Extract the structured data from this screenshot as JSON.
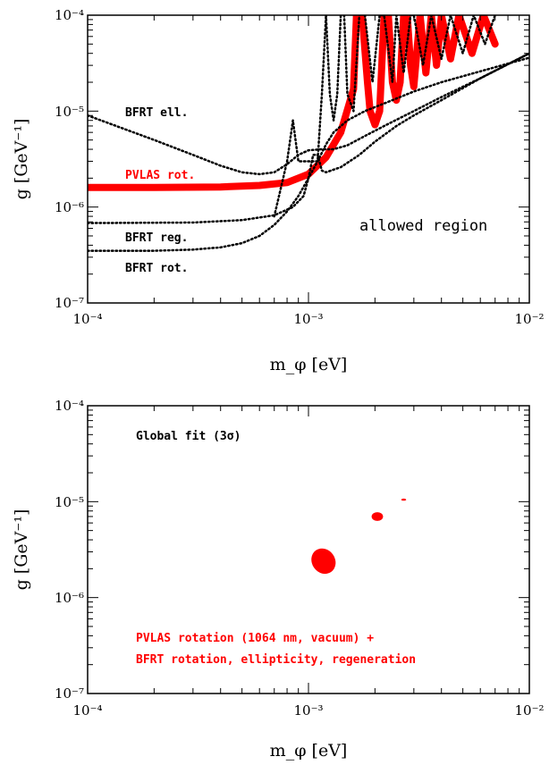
{
  "chart_data": [
    {
      "type": "line",
      "xscale": "log",
      "yscale": "log",
      "xlim": [
        0.0001,
        0.01
      ],
      "ylim": [
        1e-07,
        0.0001
      ],
      "xlabel": "m_φ [eV]",
      "ylabel": "g [GeV⁻¹]",
      "x_ticks": [
        "10⁻⁴",
        "10⁻³",
        "10⁻²"
      ],
      "y_ticks": [
        "10⁻⁷",
        "10⁻⁶",
        "10⁻⁵",
        "10⁻⁴"
      ],
      "grid": false,
      "annotations": [
        {
          "text": "BFRT ell.",
          "color": "#000000"
        },
        {
          "text": "PVLAS rot.",
          "color": "#ff0000"
        },
        {
          "text": "BFRT reg.",
          "color": "#000000"
        },
        {
          "text": "BFRT rot.",
          "color": "#000000"
        },
        {
          "text": "allowed region",
          "color": "#000000"
        }
      ],
      "curves": [
        {
          "label": "PVLAS rot.",
          "style": "solid-thick",
          "color": "#ff0000",
          "x": [
            0.0001,
            0.0002,
            0.0004,
            0.0006,
            0.0008,
            0.001,
            0.0012,
            0.0014,
            0.0016,
            0.00165
          ],
          "y": [
            1.6e-06,
            1.6e-06,
            1.62e-06,
            1.68e-06,
            1.8e-06,
            2.2e-06,
            3.3e-06,
            6e-06,
            1.7e-05,
            0.0001
          ]
        },
        {
          "label": "PVLAS rot. (resonances)",
          "style": "solid-thick",
          "color": "#ff0000",
          "x": [
            0.00175,
            0.00185,
            0.0019,
            0.002,
            0.0021,
            0.0022,
            0.0023,
            0.0024,
            0.0025,
            0.0026,
            0.0027,
            0.0028,
            0.0029,
            0.003,
            0.0032,
            0.0034,
            0.0036,
            0.0038,
            0.004,
            0.0044,
            0.0048,
            0.0055,
            0.0062,
            0.007
          ],
          "y": [
            0.0001,
            2e-05,
            1e-05,
            7.2e-06,
            1e-05,
            0.0001,
            0.0001,
            2e-05,
            1.3e-05,
            2e-05,
            0.0001,
            0.0001,
            3e-05,
            1.8e-05,
            0.0001,
            2.5e-05,
            0.0001,
            3e-05,
            0.0001,
            3.5e-05,
            0.0001,
            4e-05,
            0.0001,
            5e-05
          ]
        },
        {
          "label": "BFRT ell.",
          "style": "dotted",
          "color": "#000000",
          "x": [
            0.0001,
            0.0002,
            0.0003,
            0.0004,
            0.0005,
            0.0006,
            0.0007,
            0.0008,
            0.0009,
            0.001,
            0.00115,
            0.0013,
            0.0015,
            0.0018,
            0.0022,
            0.003,
            0.004,
            0.006,
            0.01
          ],
          "y": [
            9e-06,
            5e-06,
            3.5e-06,
            2.7e-06,
            2.3e-06,
            2.2e-06,
            2.3e-06,
            2.8e-06,
            3.5e-06,
            3.9e-06,
            4e-06,
            4e-06,
            4.4e-06,
            5.5e-06,
            7e-06,
            1e-05,
            1.4e-05,
            2.2e-05,
            4e-05
          ]
        },
        {
          "label": "BFRT reg.",
          "style": "dotted",
          "color": "#000000",
          "x": [
            0.0001,
            0.0003,
            0.0005,
            0.0007,
            0.00085,
            0.00095,
            0.001,
            0.00105,
            0.0011,
            0.00115,
            0.0012,
            0.0014,
            0.0017,
            0.002,
            0.0025,
            0.003,
            0.004,
            0.006,
            0.01
          ],
          "y": [
            6.8e-07,
            6.9e-07,
            7.3e-07,
            8.2e-07,
            1e-06,
            1.3e-06,
            2e-06,
            3.5e-06,
            3.5e-06,
            2.4e-06,
            2.3e-06,
            2.6e-06,
            3.5e-06,
            4.8e-06,
            7e-06,
            9e-06,
            1.3e-05,
            2.2e-05,
            4e-05
          ]
        },
        {
          "label": "BFRT rot.",
          "style": "dotted",
          "color": "#000000",
          "x": [
            0.0001,
            0.0002,
            0.0003,
            0.0004,
            0.0005,
            0.0006,
            0.0007,
            0.0008,
            0.0009,
            0.001,
            0.0011,
            0.0012,
            0.0013,
            0.0015,
            0.0018,
            0.0022,
            0.003,
            0.004,
            0.006,
            0.01
          ],
          "y": [
            3.5e-07,
            3.5e-07,
            3.6e-07,
            3.8e-07,
            4.2e-07,
            5e-07,
            6.5e-07,
            9e-07,
            1.3e-06,
            2e-06,
            3e-06,
            4.5e-06,
            6e-06,
            8e-06,
            1e-05,
            1.2e-05,
            1.6e-05,
            2e-05,
            2.6e-05,
            3.6e-05
          ]
        },
        {
          "label": "BFRT ell. resonance",
          "style": "dotted",
          "color": "#000000",
          "x": [
            0.0007,
            0.0008,
            0.00085,
            0.0009,
            0.0011,
            0.00115,
            0.0012
          ],
          "y": [
            8e-07,
            3e-06,
            8e-06,
            3e-06,
            3e-06,
            1.5e-05,
            0.0001
          ]
        },
        {
          "label": "BFRT ell. resonance 2",
          "style": "dotted",
          "color": "#000000",
          "x": [
            0.00145,
            0.0015,
            0.0016,
            0.0017
          ],
          "y": [
            0.0001,
            1.5e-05,
            1e-05,
            0.0001
          ]
        },
        {
          "label": "BFRT reg. resonance",
          "style": "dotted",
          "color": "#000000",
          "x": [
            0.0012,
            0.00125,
            0.0013,
            0.00135,
            0.0014
          ],
          "y": [
            0.0001,
            1.5e-05,
            8e-06,
            1.5e-05,
            0.0001
          ]
        },
        {
          "label": "BFRT resonances 3",
          "style": "dotted",
          "color": "#000000",
          "x": [
            0.0018,
            0.00195,
            0.0021,
            0.0022,
            0.0024,
            0.0025,
            0.0027,
            0.0029,
            0.003,
            0.0033,
            0.0036,
            0.004,
            0.0044,
            0.005,
            0.0056,
            0.0063,
            0.007
          ],
          "y": [
            0.0001,
            2e-05,
            0.0001,
            0.0001,
            2e-05,
            0.0001,
            2.5e-05,
            0.0001,
            0.0001,
            3e-05,
            0.0001,
            3.5e-05,
            0.0001,
            4e-05,
            0.0001,
            5e-05,
            0.0001
          ]
        }
      ]
    },
    {
      "type": "scatter",
      "xscale": "log",
      "yscale": "log",
      "xlim": [
        0.0001,
        0.01
      ],
      "ylim": [
        1e-07,
        0.0001
      ],
      "xlabel": "m_φ [eV]",
      "ylabel": "g [GeV⁻¹]",
      "x_ticks": [
        "10⁻⁴",
        "10⁻³",
        "10⁻²"
      ],
      "y_ticks": [
        "10⁻⁷",
        "10⁻⁶",
        "10⁻⁵",
        "10⁻⁴"
      ],
      "grid": false,
      "annotations": [
        {
          "text": "Global fit (3σ)",
          "color": "#000000"
        },
        {
          "text": "PVLAS rotation (1064 nm, vacuum) +",
          "color": "#ff0000"
        },
        {
          "text": "BFRT rotation, ellipticity, regeneration",
          "color": "#ff0000"
        }
      ],
      "regions": [
        {
          "x": 0.00117,
          "y": 2.4e-06,
          "rx_dec": 0.06,
          "ry_dec": 0.12,
          "tilt_deg": -35,
          "color": "#ff0000"
        },
        {
          "x": 0.00205,
          "y": 7e-06,
          "rx_dec": 0.02,
          "ry_dec": 0.06,
          "tilt_deg": 0,
          "color": "#ff0000"
        },
        {
          "x": 0.0027,
          "y": 1.05e-05,
          "rx_dec": 0.005,
          "ry_dec": 0.025,
          "tilt_deg": 0,
          "color": "#ff0000"
        }
      ]
    }
  ]
}
